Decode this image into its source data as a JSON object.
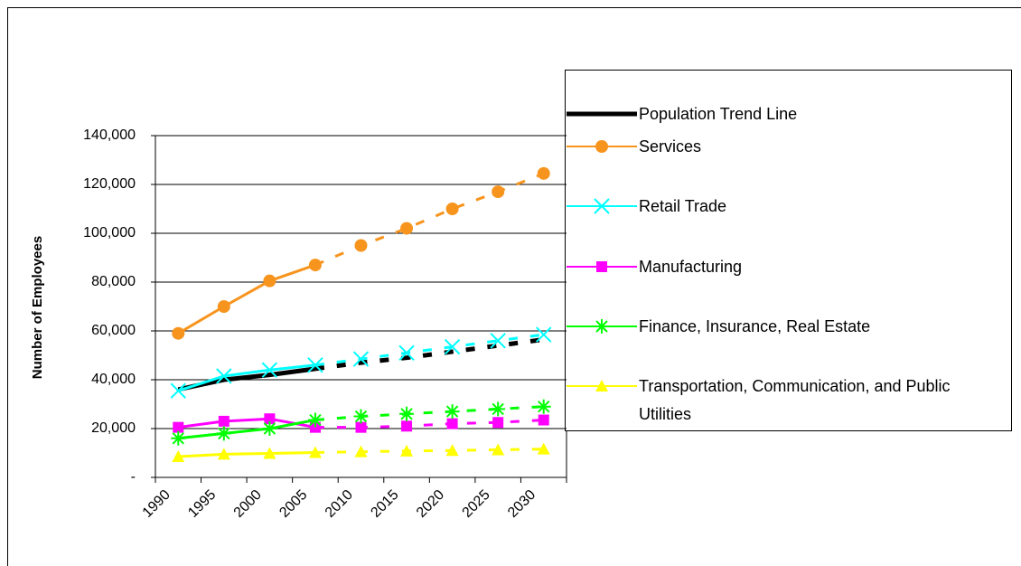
{
  "chart_data": {
    "type": "line",
    "y_label": "Number of Employees",
    "categories": [
      "1990",
      "1995",
      "2000",
      "2005",
      "2010",
      "2015",
      "2020",
      "2025",
      "2030"
    ],
    "dashed_from": "2005",
    "ylim": [
      0,
      140000
    ],
    "yticks": [
      {
        "value": 0,
        "label": "-"
      },
      {
        "value": 20000,
        "label": "20,000"
      },
      {
        "value": 40000,
        "label": "40,000"
      },
      {
        "value": 60000,
        "label": "60,000"
      },
      {
        "value": 80000,
        "label": "80,000"
      },
      {
        "value": 100000,
        "label": "100,000"
      },
      {
        "value": 120000,
        "label": "120,000"
      },
      {
        "value": 140000,
        "label": "140,000"
      }
    ],
    "grid": true,
    "legend": "right",
    "series": [
      {
        "name": "Population Trend Line",
        "color": "#000000",
        "marker": "none",
        "values": [
          36000,
          40000,
          42000,
          44500,
          47000,
          49000,
          51500,
          54000,
          56500
        ]
      },
      {
        "name": "Services",
        "color": "#f7941d",
        "marker": "circle",
        "values": [
          59000,
          70000,
          80500,
          87000,
          95000,
          102000,
          110000,
          117000,
          124500
        ]
      },
      {
        "name": "Retail Trade",
        "color": "#00ffff",
        "marker": "x",
        "values": [
          35500,
          41500,
          44000,
          46000,
          48500,
          51000,
          53500,
          56000,
          58500
        ]
      },
      {
        "name": "Manufacturing",
        "color": "#ff00ff",
        "marker": "square",
        "values": [
          20500,
          23000,
          24000,
          20500,
          20500,
          21000,
          22000,
          22500,
          23500
        ]
      },
      {
        "name": "Finance, Insurance, Real Estate",
        "color": "#00ff00",
        "marker": "star",
        "values": [
          16000,
          18000,
          20000,
          23500,
          25000,
          26000,
          27000,
          28000,
          29000
        ]
      },
      {
        "name": "Transportation, Communication, and Public Utilities",
        "color": "#ffff00",
        "marker": "triangle",
        "values": [
          8500,
          9500,
          9800,
          10200,
          10500,
          10800,
          11000,
          11300,
          11600
        ]
      }
    ]
  }
}
